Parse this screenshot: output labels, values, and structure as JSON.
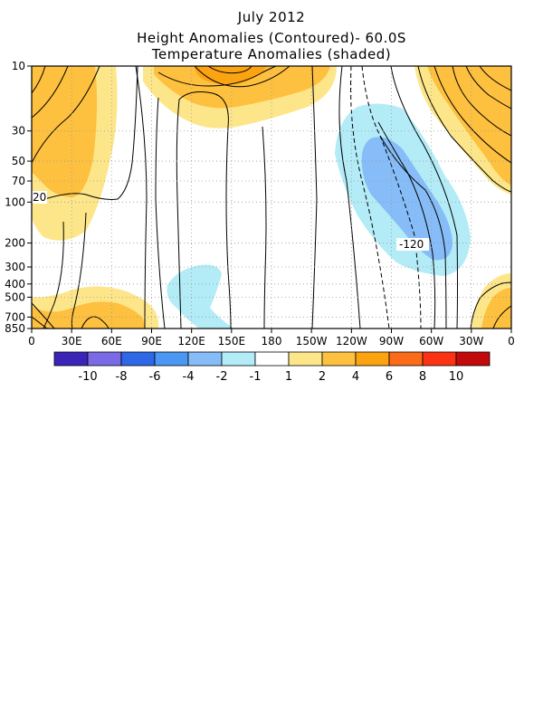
{
  "chart_data": {
    "type": "heatmap",
    "title": "July 2012",
    "subtitle_1": "Height Anomalies (Contoured)- 60.0S",
    "subtitle_2": "Temperature Anomalies (shaded)",
    "x_tick_labels": [
      "0",
      "30E",
      "60E",
      "90E",
      "120E",
      "150E",
      "180",
      "150W",
      "120W",
      "90W",
      "60W",
      "30W",
      "0"
    ],
    "y_tick_labels": [
      "10",
      "30",
      "50",
      "70",
      "100",
      "200",
      "300",
      "400",
      "500",
      "700",
      "850"
    ],
    "y_levels": [
      10,
      30,
      50,
      70,
      100,
      200,
      300,
      400,
      500,
      700,
      850
    ],
    "y_scale": "log",
    "grid": true,
    "contour_labels": [
      {
        "text": "20",
        "lon": 0,
        "level": 100
      },
      {
        "text": "-120",
        "lon": 248,
        "level": 200
      }
    ],
    "colorbar": {
      "colors": [
        "#3b25b8",
        "#7a6ae6",
        "#2e68e6",
        "#4b98f4",
        "#86bcf8",
        "#b3ecf7",
        "#ffffff",
        "#fde68a",
        "#fdc03f",
        "#fca312",
        "#fb6b18",
        "#fb3312",
        "#c20a0a"
      ],
      "labels": [
        "-10",
        "-8",
        "-6",
        "-4",
        "-2",
        "-1",
        "1",
        "2",
        "4",
        "6",
        "8",
        "10"
      ]
    }
  }
}
